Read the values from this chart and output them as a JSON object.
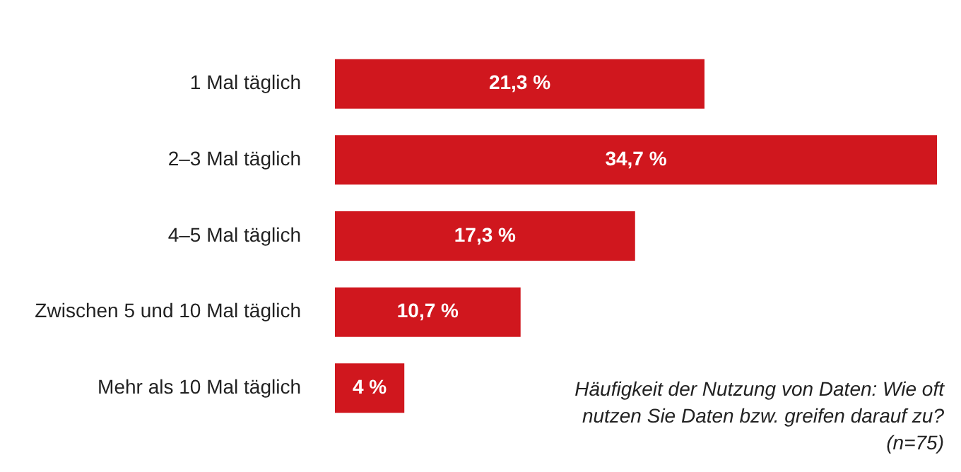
{
  "chart_data": {
    "type": "bar",
    "orientation": "horizontal",
    "categories": [
      "1 Mal täglich",
      "2–3 Mal täglich",
      "4–5 Mal täglich",
      "Zwischen 5 und 10 Mal täglich",
      "Mehr als 10 Mal täglich"
    ],
    "values": [
      21.3,
      34.7,
      17.3,
      10.7,
      4
    ],
    "value_labels": [
      "21,3 %",
      "34,7 %",
      "17,3 %",
      "10,7 %",
      "4 %"
    ],
    "color": "#d0171e",
    "tick_labels": "y",
    "annotations": [
      "Häufigkeit der Nutzung von Daten: Wie oft nutzen Sie Daten bzw. greifen darauf zu? (n=75)"
    ]
  }
}
